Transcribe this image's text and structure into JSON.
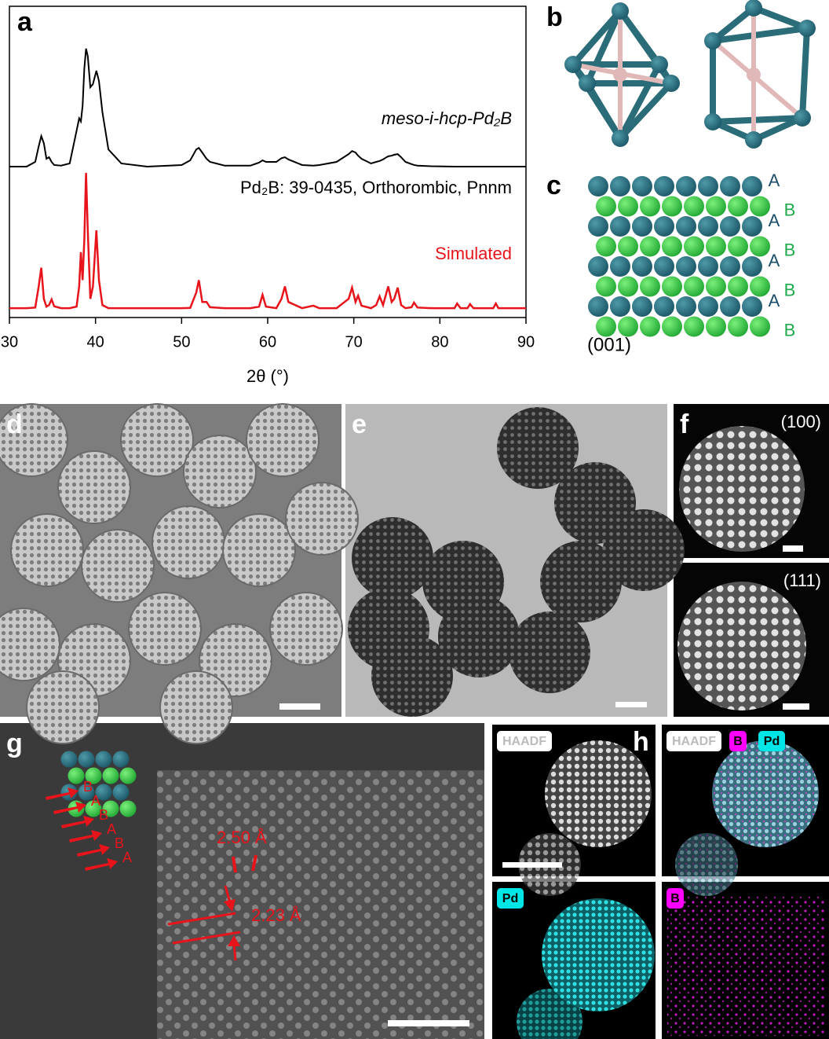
{
  "chart_data": {
    "type": "line",
    "panel": "a",
    "xlabel": "2θ (°)",
    "xlim": [
      30,
      90
    ],
    "xticks": [
      30,
      40,
      50,
      60,
      70,
      80,
      90
    ],
    "ylim": [
      0,
      100
    ],
    "x": [
      30,
      32,
      33,
      33.4,
      33.7,
      34,
      34.3,
      34.6,
      34.9,
      35.2,
      36,
      37,
      37.8,
      38.1,
      38.3,
      38.5,
      38.7,
      38.9,
      39.1,
      39.4,
      39.7,
      40.1,
      40.4,
      40.8,
      41.5,
      43,
      46,
      50,
      51,
      51.7,
      52,
      52.4,
      52.9,
      53.3,
      55,
      58,
      59,
      59.4,
      59.8,
      61,
      61.6,
      62,
      62.4,
      64,
      65.3,
      66,
      68,
      69.4,
      69.8,
      70.2,
      70.5,
      70.9,
      72,
      72.6,
      73,
      73.4,
      73.8,
      74,
      74.4,
      74.7,
      75.1,
      75.5,
      76,
      76.7,
      77,
      77.4,
      79,
      81.7,
      82,
      82.4,
      83.2,
      83.5,
      83.9,
      86.2,
      86.5,
      86.8,
      88,
      90
    ],
    "series": [
      {
        "name": "meso-i-hcp-Pd₂B",
        "color": "#000000",
        "values": [
          48.5,
          48.5,
          50,
          55,
          58.3,
          56,
          51,
          51.5,
          50,
          49,
          48.8,
          49.5,
          60,
          64,
          63,
          68,
          80,
          86.4,
          84,
          74,
          75,
          79.3,
          76,
          66,
          54,
          49.5,
          48.5,
          49,
          50.5,
          54,
          54.5,
          53,
          51,
          50,
          48.8,
          48.8,
          49.8,
          50.5,
          50,
          50,
          51.2,
          51.5,
          50.8,
          49,
          48.8,
          49,
          50,
          52.5,
          53.5,
          53,
          52,
          51,
          49.5,
          50,
          50.3,
          50.8,
          51.5,
          51.8,
          52,
          52.3,
          52.5,
          51.5,
          50,
          49.3,
          49,
          48.8,
          48.6,
          48.5,
          48.5,
          48.5,
          48.5,
          48.5,
          48.5,
          48.5,
          48.5,
          48.5,
          48.5,
          48.5
        ]
      },
      {
        "name": "Simulated",
        "color": "#e8141b",
        "values": [
          3,
          3,
          3.2,
          10,
          16,
          6,
          3.5,
          4,
          5.8,
          3.6,
          3,
          3,
          3.5,
          10,
          21,
          12,
          25,
          46.5,
          28,
          6,
          10,
          28,
          12,
          4,
          3,
          3,
          3,
          3,
          3.1,
          8,
          12,
          5,
          5,
          3.3,
          3,
          3,
          3.5,
          7.3,
          3.5,
          3,
          6,
          10,
          5,
          3,
          3.8,
          3,
          3,
          6,
          9.6,
          5,
          7,
          3.8,
          3,
          4,
          6.8,
          4,
          8,
          10,
          5,
          6,
          9.6,
          4,
          3,
          3.3,
          4.8,
          3.2,
          3,
          3,
          4.5,
          3,
          3,
          4.3,
          3,
          3,
          4.5,
          3,
          3,
          3
        ]
      }
    ],
    "annotations": [
      "Pd₂B: 39-0435, Orthorombic, Pnnm"
    ]
  },
  "panels": {
    "b": {
      "letter": "b"
    },
    "c": {
      "letter": "c",
      "layers": [
        "A",
        "B",
        "A",
        "B",
        "A",
        "B",
        "A",
        "B"
      ],
      "plane": "(001)"
    },
    "d": {
      "letter": "d"
    },
    "e": {
      "letter": "e"
    },
    "f": {
      "letter": "f",
      "labels": [
        "(100)",
        "(111)"
      ]
    },
    "g": {
      "letter": "g",
      "layers": [
        "B",
        "A",
        "B",
        "A",
        "B",
        "A"
      ],
      "spacings": [
        "2.50 Å",
        "2.23 Å"
      ]
    },
    "h": {
      "letter": "h",
      "tags": [
        "HAADF",
        "HAADF",
        "B",
        "Pd",
        "Pd",
        "B"
      ]
    }
  }
}
